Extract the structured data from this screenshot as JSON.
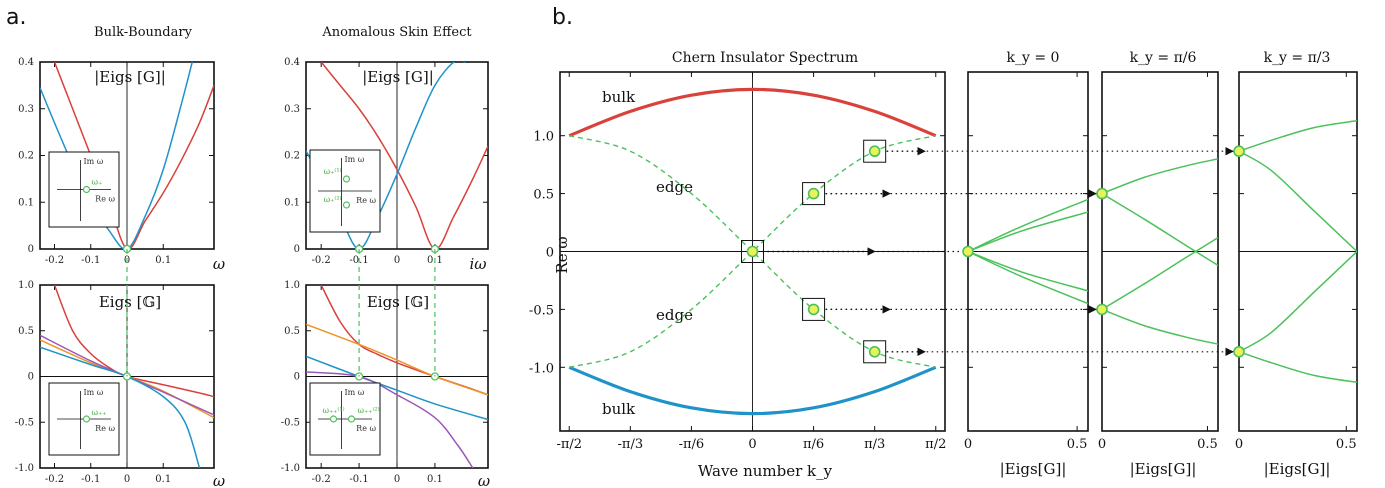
{
  "panel_labels": {
    "a": "a.",
    "b": "b."
  },
  "colors": {
    "red": "#d9413a",
    "blue": "#1f93c9",
    "orange": "#f0922a",
    "purple": "#9b59b6",
    "green": "#4cc15a",
    "marker_fill": "#e8f25a"
  },
  "chart_data": [
    {
      "id": "a-top-left",
      "type": "line",
      "title": "Bulk-Boundary",
      "label": "|Eigs [G]|",
      "xlabel": "ω",
      "xlim": [
        -0.24,
        0.24
      ],
      "ylim": [
        0,
        0.4
      ],
      "xticks": [
        "-0.2",
        "-0.1",
        "0",
        "0.1"
      ],
      "yticks": [
        "0",
        "0.1",
        "0.2",
        "0.3",
        "0.4"
      ],
      "inset": {
        "ylabel": "Im ω",
        "xlabel": "Re ω",
        "point_label": "ω₊"
      },
      "series": [
        {
          "color": "#d9413a",
          "x": [
            -0.2,
            -0.15,
            -0.1,
            -0.05,
            0,
            0.05,
            0.1,
            0.15,
            0.2,
            0.24
          ],
          "y": [
            0.4,
            0.3,
            0.2,
            0.1,
            0.0,
            0.06,
            0.12,
            0.19,
            0.27,
            0.35
          ]
        },
        {
          "color": "#1f93c9",
          "x": [
            -0.24,
            -0.2,
            -0.15,
            -0.1,
            -0.05,
            0,
            0.05,
            0.1,
            0.15,
            0.18
          ],
          "y": [
            0.345,
            0.27,
            0.18,
            0.1,
            0.04,
            0.0,
            0.07,
            0.17,
            0.31,
            0.4
          ]
        }
      ]
    },
    {
      "id": "a-top-right",
      "type": "line",
      "title": "Anomalous Skin Effect",
      "label": "|Eigs [G]|",
      "xlabel": "iω",
      "xlim": [
        -0.24,
        0.24
      ],
      "ylim": [
        0,
        0.4
      ],
      "xticks": [
        "-0.2",
        "-0.1",
        "0",
        "0.1"
      ],
      "yticks": [
        "0",
        "0.1",
        "0.2",
        "0.3",
        "0.4"
      ],
      "inset": {
        "ylabel": "Im ω",
        "xlabel": "Re ω",
        "point_labels": [
          "ω₊⁽¹⁾",
          "ω₊⁽²⁾"
        ]
      },
      "series": [
        {
          "color": "#d9413a",
          "x": [
            -0.2,
            -0.15,
            -0.1,
            -0.05,
            0,
            0.05,
            0.1,
            0.15,
            0.2,
            0.24
          ],
          "y": [
            0.4,
            0.35,
            0.3,
            0.24,
            0.17,
            0.09,
            0.0,
            0.07,
            0.15,
            0.22
          ]
        },
        {
          "color": "#1f93c9",
          "x": [
            -0.24,
            -0.2,
            -0.15,
            -0.1,
            -0.05,
            0,
            0.05,
            0.1,
            0.15,
            0.18
          ],
          "y": [
            0.21,
            0.15,
            0.07,
            0.0,
            0.07,
            0.16,
            0.26,
            0.35,
            0.4,
            0.4
          ]
        }
      ]
    },
    {
      "id": "a-bottom-left",
      "type": "line",
      "label": "Eigs [𝔾]",
      "xlabel": "ω",
      "xlim": [
        -0.24,
        0.24
      ],
      "ylim": [
        -1.0,
        1.0
      ],
      "xticks": [
        "-0.2",
        "-0.1",
        "0",
        "0.1"
      ],
      "yticks": [
        "-1.0",
        "-0.5",
        "0",
        "0.5",
        "1.0"
      ],
      "inset": {
        "ylabel": "Im ω",
        "xlabel": "Re ω",
        "point_label": "ω₊₊"
      },
      "series": [
        {
          "color": "#d9413a",
          "x": [
            -0.2,
            -0.15,
            -0.1,
            -0.05,
            0,
            0.1,
            0.2,
            0.24
          ],
          "y": [
            1.0,
            0.5,
            0.25,
            0.1,
            0.0,
            -0.09,
            -0.18,
            -0.22
          ]
        },
        {
          "color": "#f0922a",
          "x": [
            -0.24,
            -0.1,
            0,
            0.1,
            0.24
          ],
          "y": [
            0.4,
            0.15,
            0.0,
            -0.16,
            -0.45
          ]
        },
        {
          "color": "#9b59b6",
          "x": [
            -0.24,
            -0.1,
            0,
            0.1,
            0.24
          ],
          "y": [
            0.45,
            0.17,
            0.0,
            -0.17,
            -0.42
          ]
        },
        {
          "color": "#1f93c9",
          "x": [
            -0.24,
            -0.1,
            0,
            0.1,
            0.16,
            0.2
          ],
          "y": [
            0.32,
            0.13,
            0.0,
            -0.22,
            -0.5,
            -1.0
          ]
        }
      ]
    },
    {
      "id": "a-bottom-right",
      "type": "line",
      "label": "Eigs [𝔾]",
      "xlabel": "ω",
      "xlim": [
        -0.24,
        0.24
      ],
      "ylim": [
        -1.0,
        1.0
      ],
      "xticks": [
        "-0.2",
        "-0.1",
        "0",
        "0.1"
      ],
      "yticks": [
        "-1.0",
        "-0.5",
        "0",
        "0.5",
        "1.0"
      ],
      "inset": {
        "ylabel": "Im ω",
        "xlabel": "Re ω",
        "point_labels": [
          "ω₊₊⁽¹⁾",
          "ω₊₊⁽²⁾"
        ]
      },
      "series": [
        {
          "color": "#d9413a",
          "x": [
            -0.2,
            -0.15,
            -0.1,
            -0.05,
            0,
            0.1,
            0.2,
            0.24
          ],
          "y": [
            1.0,
            0.6,
            0.35,
            0.24,
            0.15,
            0.0,
            -0.14,
            -0.2
          ]
        },
        {
          "color": "#f0922a",
          "x": [
            -0.24,
            -0.1,
            0,
            0.1,
            0.24
          ],
          "y": [
            0.57,
            0.35,
            0.18,
            0.0,
            -0.2
          ]
        },
        {
          "color": "#1f93c9",
          "x": [
            -0.24,
            -0.1,
            0,
            0.1,
            0.24
          ],
          "y": [
            0.22,
            0.0,
            -0.15,
            -0.3,
            -0.47
          ]
        },
        {
          "color": "#9b59b6",
          "x": [
            -0.24,
            -0.1,
            0,
            0.1,
            0.16,
            0.2
          ],
          "y": [
            0.05,
            0.0,
            -0.2,
            -0.45,
            -0.75,
            -1.0
          ]
        }
      ]
    },
    {
      "id": "b-spectrum",
      "type": "line",
      "title": "Chern Insulator Spectrum",
      "xlabel": "Wave number k_y",
      "ylabel": "Re ω",
      "xlim": [
        -1.65,
        1.65
      ],
      "ylim": [
        -1.55,
        1.55
      ],
      "xticks": [
        "-π/2",
        "-π/3",
        "-π/6",
        "0",
        "π/6",
        "π/3",
        "π/2"
      ],
      "yticks": [
        "1.0",
        "0.5",
        "0",
        "-0.5",
        "-1.0"
      ],
      "annotations": [
        "bulk",
        "edge",
        "edge",
        "bulk"
      ],
      "series": [
        {
          "name": "bulk",
          "color": "#d9413a",
          "x": [
            -1.5708,
            -1.0472,
            -0.5236,
            0,
            0.5236,
            1.0472,
            1.5708
          ],
          "y": [
            1.0,
            1.21,
            1.35,
            1.4,
            1.35,
            1.21,
            1.0
          ]
        },
        {
          "name": "bulk",
          "color": "#1f93c9",
          "x": [
            -1.5708,
            -1.0472,
            -0.5236,
            0,
            0.5236,
            1.0472,
            1.5708
          ],
          "y": [
            -1.0,
            -1.21,
            -1.35,
            -1.4,
            -1.35,
            -1.21,
            -1.0
          ]
        },
        {
          "name": "edge",
          "color": "#4cc15a",
          "dashed": true,
          "x": [
            -1.5708,
            -1.0472,
            -0.5236,
            0,
            0.5236,
            1.0472,
            1.5708
          ],
          "y": [
            1.0,
            0.866,
            0.5,
            0.0,
            -0.5,
            -0.866,
            -1.0
          ]
        },
        {
          "name": "edge",
          "color": "#4cc15a",
          "dashed": true,
          "x": [
            -1.5708,
            -1.0472,
            -0.5236,
            0,
            0.5236,
            1.0472,
            1.5708
          ],
          "y": [
            -1.0,
            -0.866,
            -0.5,
            0.0,
            0.5,
            0.866,
            1.0
          ]
        }
      ],
      "markers": [
        {
          "x": 0,
          "y": 0.0
        },
        {
          "x": 0.5236,
          "y": 0.5
        },
        {
          "x": 0.5236,
          "y": -0.5
        },
        {
          "x": 1.0472,
          "y": 0.866
        },
        {
          "x": 1.0472,
          "y": -0.866
        }
      ]
    },
    {
      "id": "b-ky0",
      "type": "line",
      "title": "k_y = 0",
      "xlabel": "|Eigs[G]|",
      "xlim": [
        0,
        0.55
      ],
      "ylim": [
        -1.55,
        1.55
      ],
      "xticks": [
        "0",
        "0.5"
      ],
      "series": [
        {
          "color": "#4cc15a",
          "x": [
            0,
            0.25,
            0.55
          ],
          "y": [
            0,
            0.22,
            0.45
          ]
        },
        {
          "color": "#4cc15a",
          "x": [
            0,
            0.25,
            0.55
          ],
          "y": [
            0,
            0.18,
            0.34
          ]
        },
        {
          "color": "#4cc15a",
          "x": [
            0,
            0.25,
            0.55
          ],
          "y": [
            0,
            -0.18,
            -0.34
          ]
        },
        {
          "color": "#4cc15a",
          "x": [
            0,
            0.25,
            0.55
          ],
          "y": [
            0,
            -0.22,
            -0.45
          ]
        }
      ],
      "markers": [
        {
          "x": 0,
          "y": 0
        }
      ]
    },
    {
      "id": "b-ky-pi6",
      "type": "line",
      "title": "k_y = π/6",
      "xlabel": "|Eigs[G]|",
      "xlim": [
        0,
        0.55
      ],
      "ylim": [
        -1.55,
        1.55
      ],
      "xticks": [
        "0",
        "0.5"
      ],
      "series": [
        {
          "color": "#4cc15a",
          "x": [
            0,
            0.2,
            0.4,
            0.55
          ],
          "y": [
            0.5,
            0.64,
            0.74,
            0.8
          ]
        },
        {
          "color": "#4cc15a",
          "x": [
            0,
            0.2,
            0.4,
            0.55
          ],
          "y": [
            0.5,
            0.28,
            0.05,
            -0.12
          ]
        },
        {
          "color": "#4cc15a",
          "x": [
            0,
            0.2,
            0.4,
            0.55
          ],
          "y": [
            -0.5,
            -0.28,
            -0.05,
            0.12
          ]
        },
        {
          "color": "#4cc15a",
          "x": [
            0,
            0.2,
            0.4,
            0.55
          ],
          "y": [
            -0.5,
            -0.64,
            -0.74,
            -0.8
          ]
        }
      ],
      "markers": [
        {
          "x": 0,
          "y": 0.5
        },
        {
          "x": 0,
          "y": -0.5
        }
      ]
    },
    {
      "id": "b-ky-pi3",
      "type": "line",
      "title": "k_y = π/3",
      "xlabel": "|Eigs[G]|",
      "xlim": [
        0,
        0.55
      ],
      "ylim": [
        -1.55,
        1.55
      ],
      "xticks": [
        "0",
        "0.5"
      ],
      "series": [
        {
          "color": "#4cc15a",
          "x": [
            0,
            0.15,
            0.35,
            0.55
          ],
          "y": [
            0.866,
            0.96,
            1.07,
            1.13
          ]
        },
        {
          "color": "#4cc15a",
          "x": [
            0,
            0.15,
            0.35,
            0.55
          ],
          "y": [
            0.866,
            0.7,
            0.35,
            0.0
          ]
        },
        {
          "color": "#4cc15a",
          "x": [
            0,
            0.15,
            0.35,
            0.55
          ],
          "y": [
            -0.866,
            -0.7,
            -0.35,
            0.0
          ]
        },
        {
          "color": "#4cc15a",
          "x": [
            0,
            0.15,
            0.35,
            0.55
          ],
          "y": [
            -0.866,
            -0.96,
            -1.07,
            -1.13
          ]
        }
      ],
      "markers": [
        {
          "x": 0,
          "y": 0.866
        },
        {
          "x": 0,
          "y": -0.866
        }
      ]
    }
  ]
}
